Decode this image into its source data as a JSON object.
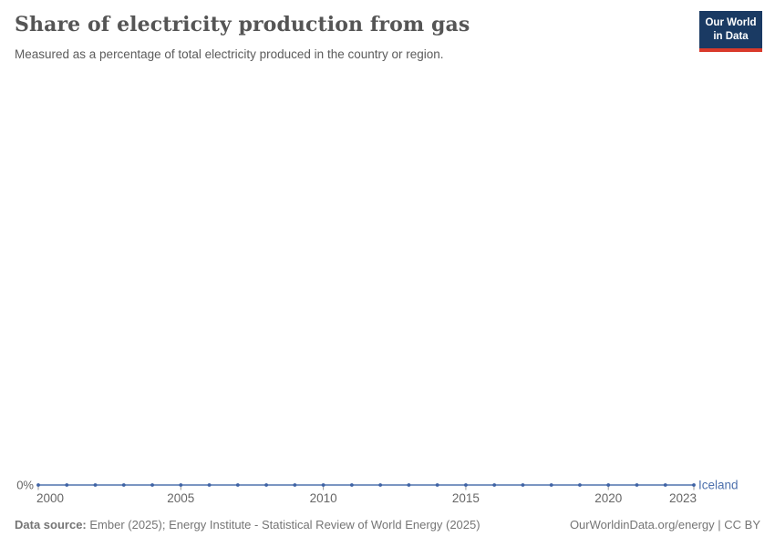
{
  "header": {
    "title": "Share of electricity production from gas",
    "subtitle": "Measured as a percentage of total electricity produced in the country or region.",
    "logo": {
      "line1": "Our World",
      "line2": "in Data",
      "bg_color": "#1a3a63",
      "bar_color": "#d93a2b"
    }
  },
  "chart_data": {
    "type": "line",
    "title": "Share of electricity production from gas",
    "subtitle": "Measured as a percentage of total electricity produced in the country or region.",
    "unit": "%",
    "x": [
      2000,
      2001,
      2002,
      2003,
      2004,
      2005,
      2006,
      2007,
      2008,
      2009,
      2010,
      2011,
      2012,
      2013,
      2014,
      2015,
      2016,
      2017,
      2018,
      2019,
      2020,
      2021,
      2022,
      2023
    ],
    "series": [
      {
        "name": "Iceland",
        "color": "#4e71ad",
        "dot_color": "#3f63a5",
        "values": [
          0,
          0,
          0,
          0,
          0,
          0,
          0,
          0,
          0,
          0,
          0,
          0,
          0,
          0,
          0,
          0,
          0,
          0,
          0,
          0,
          0,
          0,
          0,
          0
        ]
      }
    ],
    "x_ticks": [
      2000,
      2005,
      2010,
      2015,
      2020,
      2023
    ],
    "y_axis_label": "0%",
    "xlim": [
      2000,
      2023
    ],
    "ylim": [
      0,
      100
    ],
    "grid": false,
    "legend": "end-of-line-label",
    "axis_text_color": "#666666",
    "tick_color": "#999999"
  },
  "footer": {
    "source_label": "Data source:",
    "source_text": " Ember (2025); Energy Institute - Statistical Review of World Energy (2025)",
    "right_text": "OurWorldinData.org/energy | CC BY"
  }
}
